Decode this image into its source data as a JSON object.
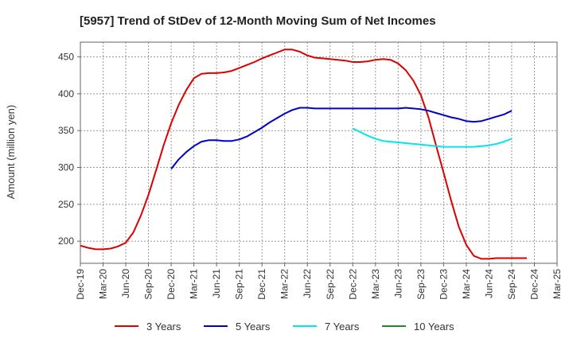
{
  "chart_data": {
    "type": "line",
    "title": "[5957]  Trend of StDev of 12-Month Moving Sum of Net Incomes",
    "ylabel": "Amount (million yen)",
    "xlabel": "",
    "ylim": [
      170,
      470
    ],
    "yticks": [
      200,
      250,
      300,
      350,
      400,
      450
    ],
    "x_tick_labels": [
      "Dec-19",
      "Mar-20",
      "Jun-20",
      "Sep-20",
      "Dec-20",
      "Mar-21",
      "Jun-21",
      "Sep-21",
      "Dec-21",
      "Mar-22",
      "Jun-22",
      "Sep-22",
      "Dec-22",
      "Mar-23",
      "Jun-23",
      "Sep-23",
      "Dec-23",
      "Mar-24",
      "Jun-24",
      "Sep-24",
      "Dec-24",
      "Mar-25"
    ],
    "grid": true,
    "legend_position": "bottom",
    "series": [
      {
        "name": "3 Years",
        "color": "#dd0000",
        "points": [
          [
            0,
            194
          ],
          [
            1,
            191
          ],
          [
            2,
            189
          ],
          [
            3,
            189
          ],
          [
            4,
            190
          ],
          [
            5,
            193
          ],
          [
            6,
            198
          ],
          [
            7,
            212
          ],
          [
            8,
            235
          ],
          [
            9,
            263
          ],
          [
            10,
            296
          ],
          [
            11,
            330
          ],
          [
            12,
            360
          ],
          [
            13,
            385
          ],
          [
            14,
            405
          ],
          [
            15,
            421
          ],
          [
            16,
            427
          ],
          [
            17,
            428
          ],
          [
            18,
            428
          ],
          [
            19,
            429
          ],
          [
            20,
            431
          ],
          [
            21,
            435
          ],
          [
            22,
            439
          ],
          [
            23,
            443
          ],
          [
            24,
            448
          ],
          [
            25,
            452
          ],
          [
            26,
            456
          ],
          [
            27,
            460
          ],
          [
            28,
            460
          ],
          [
            29,
            457
          ],
          [
            30,
            452
          ],
          [
            31,
            449
          ],
          [
            32,
            448
          ],
          [
            33,
            447
          ],
          [
            34,
            446
          ],
          [
            35,
            445
          ],
          [
            36,
            443
          ],
          [
            37,
            443
          ],
          [
            38,
            444
          ],
          [
            39,
            446
          ],
          [
            40,
            447
          ],
          [
            41,
            446
          ],
          [
            42,
            441
          ],
          [
            43,
            432
          ],
          [
            44,
            418
          ],
          [
            45,
            398
          ],
          [
            46,
            368
          ],
          [
            47,
            330
          ],
          [
            48,
            293
          ],
          [
            49,
            255
          ],
          [
            50,
            220
          ],
          [
            51,
            195
          ],
          [
            52,
            180
          ],
          [
            53,
            176
          ],
          [
            54,
            176
          ],
          [
            55,
            177
          ],
          [
            56,
            177
          ],
          [
            57,
            177
          ],
          [
            58,
            177
          ],
          [
            59,
            177
          ]
        ]
      },
      {
        "name": "5 Years",
        "color": "#0000cc",
        "points": [
          [
            12,
            298
          ],
          [
            13,
            311
          ],
          [
            14,
            321
          ],
          [
            15,
            329
          ],
          [
            16,
            335
          ],
          [
            17,
            337
          ],
          [
            18,
            337
          ],
          [
            19,
            336
          ],
          [
            20,
            336
          ],
          [
            21,
            338
          ],
          [
            22,
            342
          ],
          [
            23,
            348
          ],
          [
            24,
            354
          ],
          [
            25,
            361
          ],
          [
            26,
            367
          ],
          [
            27,
            373
          ],
          [
            28,
            378
          ],
          [
            29,
            381
          ],
          [
            30,
            381
          ],
          [
            31,
            380
          ],
          [
            32,
            380
          ],
          [
            33,
            380
          ],
          [
            34,
            380
          ],
          [
            35,
            380
          ],
          [
            36,
            380
          ],
          [
            37,
            380
          ],
          [
            38,
            380
          ],
          [
            39,
            380
          ],
          [
            40,
            380
          ],
          [
            41,
            380
          ],
          [
            42,
            380
          ],
          [
            43,
            381
          ],
          [
            44,
            380
          ],
          [
            45,
            379
          ],
          [
            46,
            377
          ],
          [
            47,
            374
          ],
          [
            48,
            371
          ],
          [
            49,
            368
          ],
          [
            50,
            366
          ],
          [
            51,
            363
          ],
          [
            52,
            362
          ],
          [
            53,
            363
          ],
          [
            54,
            366
          ],
          [
            55,
            369
          ],
          [
            56,
            372
          ],
          [
            57,
            377
          ]
        ]
      },
      {
        "name": "7 Years",
        "color": "#00e5ee",
        "points": [
          [
            36,
            353
          ],
          [
            37,
            348
          ],
          [
            38,
            343
          ],
          [
            39,
            339
          ],
          [
            40,
            336
          ],
          [
            41,
            335
          ],
          [
            42,
            334
          ],
          [
            43,
            333
          ],
          [
            44,
            332
          ],
          [
            45,
            331
          ],
          [
            46,
            330
          ],
          [
            47,
            329
          ],
          [
            48,
            328
          ],
          [
            49,
            328
          ],
          [
            50,
            328
          ],
          [
            51,
            328
          ],
          [
            52,
            328
          ],
          [
            53,
            329
          ],
          [
            54,
            330
          ],
          [
            55,
            332
          ],
          [
            56,
            335
          ],
          [
            57,
            339
          ]
        ]
      },
      {
        "name": "10 Years",
        "color": "#228b22",
        "points": []
      }
    ]
  }
}
